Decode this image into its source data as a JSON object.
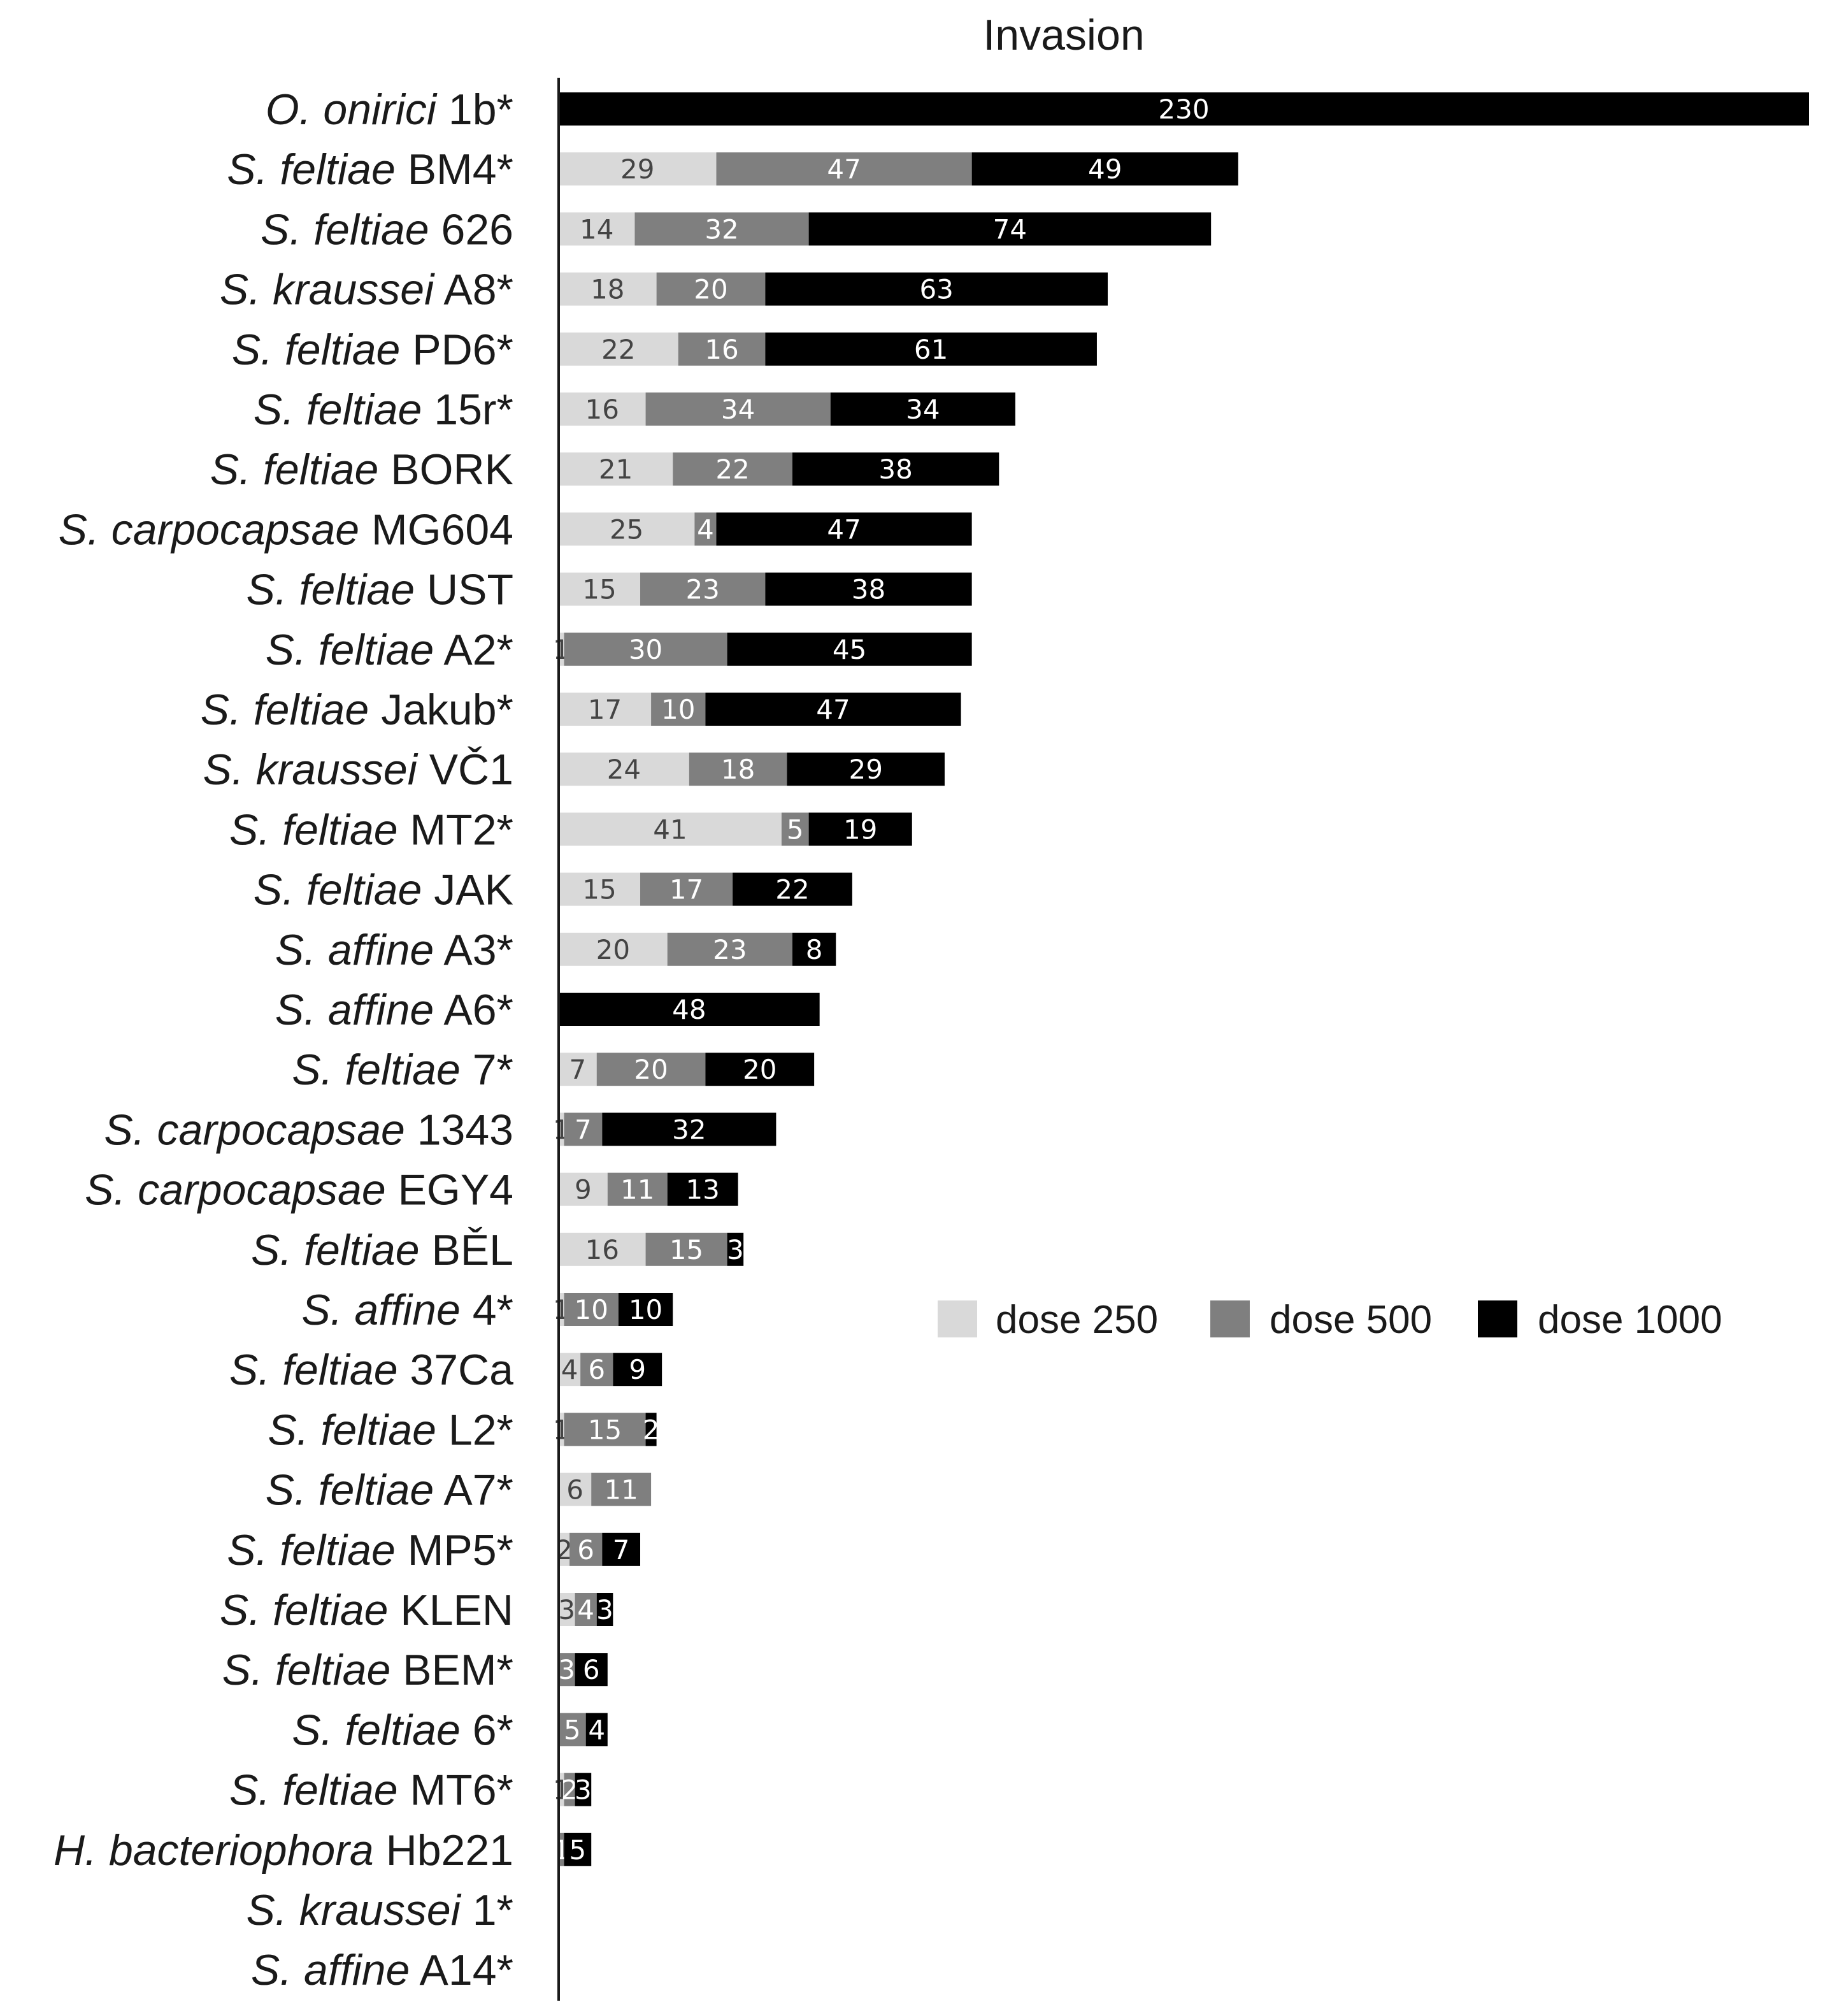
{
  "chart_data": {
    "type": "bar",
    "orientation": "horizontal",
    "stacked": true,
    "title": "Invasion",
    "xlabel": "",
    "ylabel": "",
    "grid": false,
    "legend_position": "right-middle",
    "categories": [
      {
        "genus": "O. onirici",
        "strain": "1b*"
      },
      {
        "genus": "S. feltiae",
        "strain": "BM4*"
      },
      {
        "genus": "S. feltiae",
        "strain": "626"
      },
      {
        "genus": "S. kraussei",
        "strain": "A8*"
      },
      {
        "genus": "S. feltiae",
        "strain": "PD6*"
      },
      {
        "genus": "S. feltiae",
        "strain": "15r*"
      },
      {
        "genus": "S. feltiae",
        "strain": "BORK"
      },
      {
        "genus": "S. carpocapsae",
        "strain": "MG604"
      },
      {
        "genus": "S. feltiae",
        "strain": "UST"
      },
      {
        "genus": "S. feltiae",
        "strain": "A2*"
      },
      {
        "genus": "S. feltiae",
        "strain": "Jakub*"
      },
      {
        "genus": "S. kraussei",
        "strain": "VČ1"
      },
      {
        "genus": "S. feltiae",
        "strain": "MT2*"
      },
      {
        "genus": "S. feltiae",
        "strain": "JAK"
      },
      {
        "genus": "S. affine",
        "strain": "A3*"
      },
      {
        "genus": "S. affine",
        "strain": "A6*"
      },
      {
        "genus": "S. feltiae",
        "strain": "7*"
      },
      {
        "genus": "S. carpocapsae",
        "strain": "1343"
      },
      {
        "genus": "S. carpocapsae",
        "strain": "EGY4"
      },
      {
        "genus": "S. feltiae",
        "strain": "BĚL"
      },
      {
        "genus": "S. affine",
        "strain": "4*"
      },
      {
        "genus": "S. feltiae",
        "strain": "37Ca"
      },
      {
        "genus": "S. feltiae",
        "strain": "L2*"
      },
      {
        "genus": "S. feltiae",
        "strain": "A7*"
      },
      {
        "genus": "S. feltiae",
        "strain": "MP5*"
      },
      {
        "genus": "S. feltiae",
        "strain": "KLEN"
      },
      {
        "genus": "S. feltiae",
        "strain": "BEM*"
      },
      {
        "genus": "S. feltiae",
        "strain": "6*"
      },
      {
        "genus": "S. feltiae",
        "strain": "MT6*"
      },
      {
        "genus": "H. bacteriophora",
        "strain": "Hb221"
      },
      {
        "genus": "S. kraussei",
        "strain": "1*"
      },
      {
        "genus": "S. affine",
        "strain": "A14*"
      }
    ],
    "series": [
      {
        "name": "dose 250",
        "color": "#d9d9d9",
        "label_color": "#444444",
        "values": [
          0,
          29,
          14,
          18,
          22,
          16,
          21,
          25,
          15,
          1,
          17,
          24,
          41,
          15,
          20,
          0,
          7,
          1,
          9,
          16,
          1,
          4,
          1,
          6,
          2,
          3,
          0,
          0,
          1,
          0,
          0,
          0
        ]
      },
      {
        "name": "dose 500",
        "color": "#7f7f7f",
        "label_color": "#ffffff",
        "values": [
          0,
          47,
          32,
          20,
          16,
          34,
          22,
          4,
          23,
          30,
          10,
          18,
          5,
          17,
          23,
          0,
          20,
          7,
          11,
          15,
          10,
          6,
          15,
          11,
          6,
          4,
          3,
          5,
          2,
          1,
          0,
          0
        ]
      },
      {
        "name": "dose 1000",
        "color": "#000000",
        "label_color": "#ffffff",
        "values": [
          230,
          49,
          74,
          63,
          61,
          34,
          38,
          47,
          38,
          45,
          47,
          29,
          19,
          22,
          8,
          48,
          20,
          32,
          13,
          3,
          10,
          9,
          2,
          0,
          7,
          3,
          6,
          4,
          3,
          5,
          0,
          0
        ]
      }
    ],
    "xlim": [
      0,
      230
    ]
  }
}
